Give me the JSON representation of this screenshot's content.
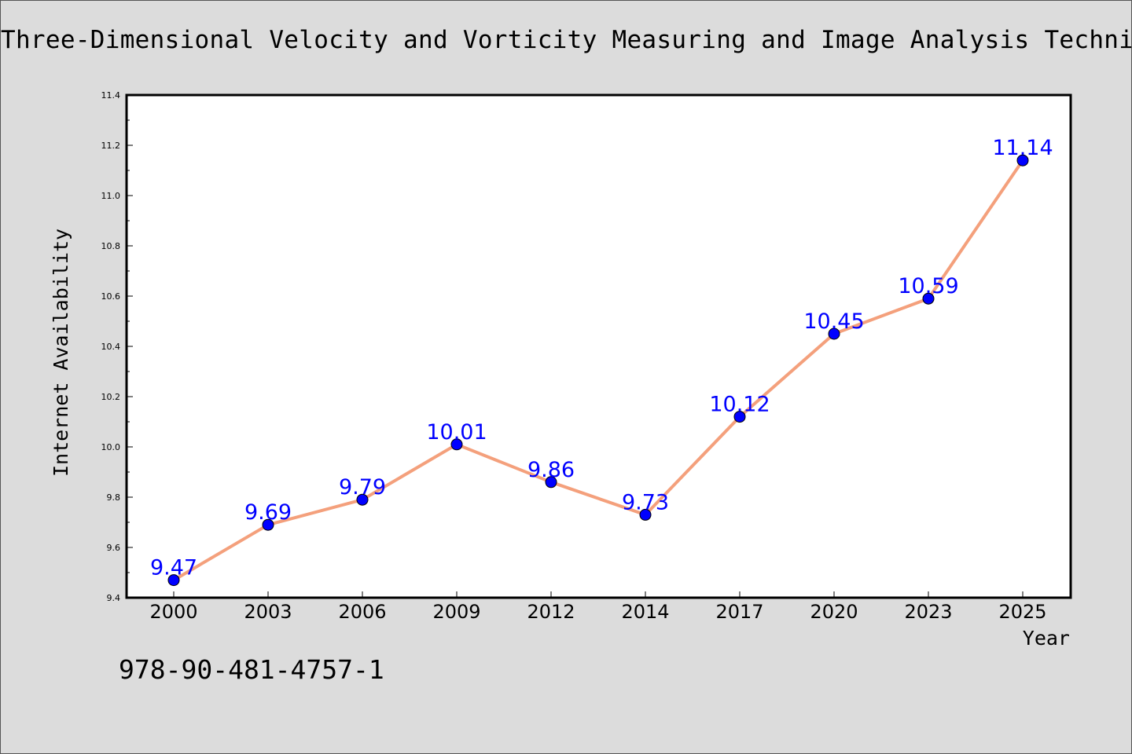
{
  "chart_data": {
    "type": "line",
    "title": "Three-Dimensional Velocity and Vorticity Measuring and Image Analysis Techniques",
    "xlabel": "Year",
    "ylabel": "Internet Availability",
    "categories": [
      "2000",
      "2003",
      "2006",
      "2009",
      "2012",
      "2014",
      "2017",
      "2020",
      "2023",
      "2025"
    ],
    "series": [
      {
        "name": "",
        "values": [
          9.47,
          9.69,
          9.79,
          10.01,
          9.86,
          9.73,
          10.12,
          10.45,
          10.59,
          11.14
        ],
        "labels": [
          "9.47",
          "9.69",
          "9.79",
          "10.01",
          "9.86",
          "9.73",
          "10.12",
          "10.45",
          "10.59",
          "11.14"
        ],
        "line_color": "#f4a07c",
        "marker_color": "#0000ff"
      }
    ],
    "ylim": [
      9.4,
      11.4
    ],
    "yticks": [
      "9.4",
      "9.6",
      "9.8",
      "10.0",
      "10.2",
      "10.4",
      "10.6",
      "10.8",
      "11.0",
      "11.2",
      "11.4"
    ],
    "label_color": "#0000ff",
    "grid": false,
    "legend": "none"
  },
  "footer": {
    "isbn": "978-90-481-4757-1"
  }
}
